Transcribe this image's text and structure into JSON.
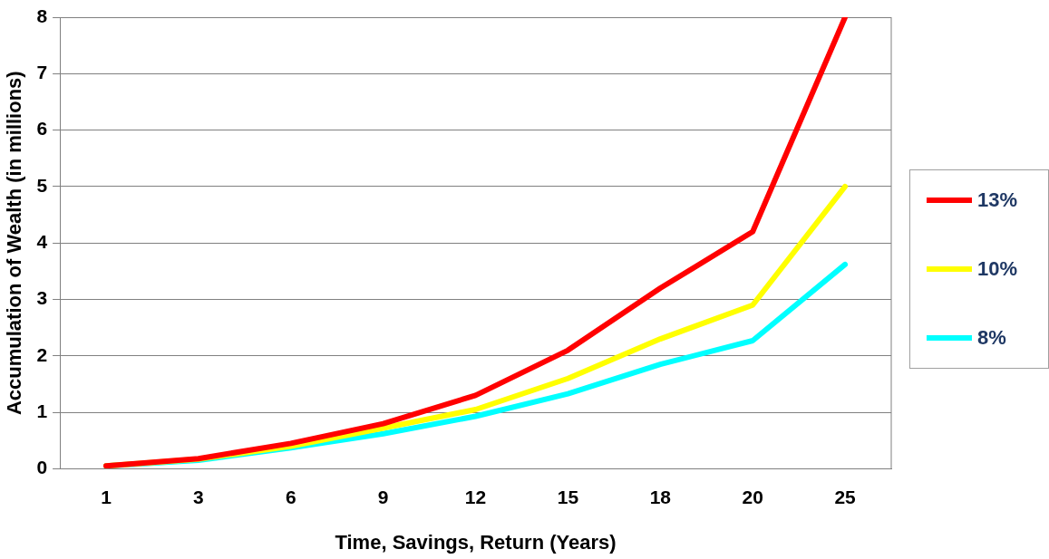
{
  "chart_data": {
    "type": "line",
    "xlabel": "Time, Savings, Return (Years)",
    "ylabel": "Accumulation of Wealth (in millions)",
    "categories": [
      "1",
      "3",
      "6",
      "9",
      "12",
      "15",
      "18",
      "20",
      "25"
    ],
    "series": [
      {
        "name": "13%",
        "color": "#ff0000",
        "values": [
          0.05,
          0.18,
          0.45,
          0.8,
          1.3,
          2.1,
          3.2,
          4.2,
          8.0
        ]
      },
      {
        "name": "10%",
        "color": "#ffff00",
        "values": [
          0.05,
          0.17,
          0.4,
          0.72,
          1.05,
          1.6,
          2.3,
          2.9,
          5.0
        ]
      },
      {
        "name": "8%",
        "color": "#00ffff",
        "values": [
          0.05,
          0.15,
          0.37,
          0.62,
          0.93,
          1.33,
          1.85,
          2.27,
          3.62
        ]
      }
    ],
    "ylim": [
      0,
      8
    ],
    "yticks": [
      0,
      1,
      2,
      3,
      4,
      5,
      6,
      7,
      8
    ],
    "grid": "y",
    "legend": "right",
    "marker": "none",
    "line_style": "solid"
  }
}
